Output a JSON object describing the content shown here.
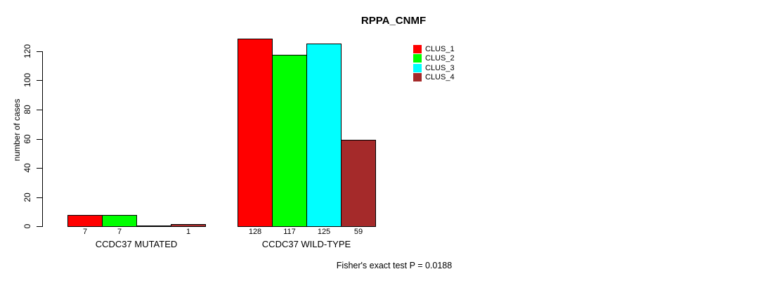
{
  "page": {
    "background_color": "#ffffff"
  },
  "chart_data": {
    "type": "bar",
    "title": "RPPA_CNMF",
    "xlabel": "",
    "ylabel": "number of cases",
    "ylim": [
      0,
      130
    ],
    "yticks": [
      0,
      20,
      40,
      60,
      80,
      100,
      120
    ],
    "grid": false,
    "categories": [
      "CCDC37 MUTATED",
      "CCDC37 WILD-TYPE"
    ],
    "series": [
      {
        "name": "CLUS_1",
        "color": "#ff0000",
        "values": [
          7,
          128
        ]
      },
      {
        "name": "CLUS_2",
        "color": "#00ff00",
        "values": [
          7,
          117
        ]
      },
      {
        "name": "CLUS_3",
        "color": "#00ffff",
        "values": [
          0,
          125
        ]
      },
      {
        "name": "CLUS_4",
        "color": "#a52a2a",
        "values": [
          1,
          59
        ]
      }
    ],
    "bar_value_labels": [
      [
        "7",
        "7",
        "",
        "1"
      ],
      [
        "128",
        "117",
        "125",
        "59"
      ]
    ],
    "legend": {
      "position": "right",
      "entries": [
        "CLUS_1",
        "CLUS_2",
        "CLUS_3",
        "CLUS_4"
      ]
    },
    "annotation": "Fisher's exact test P = 0.0188",
    "axis_color": "#000000",
    "bar_border_color": "#000000"
  }
}
